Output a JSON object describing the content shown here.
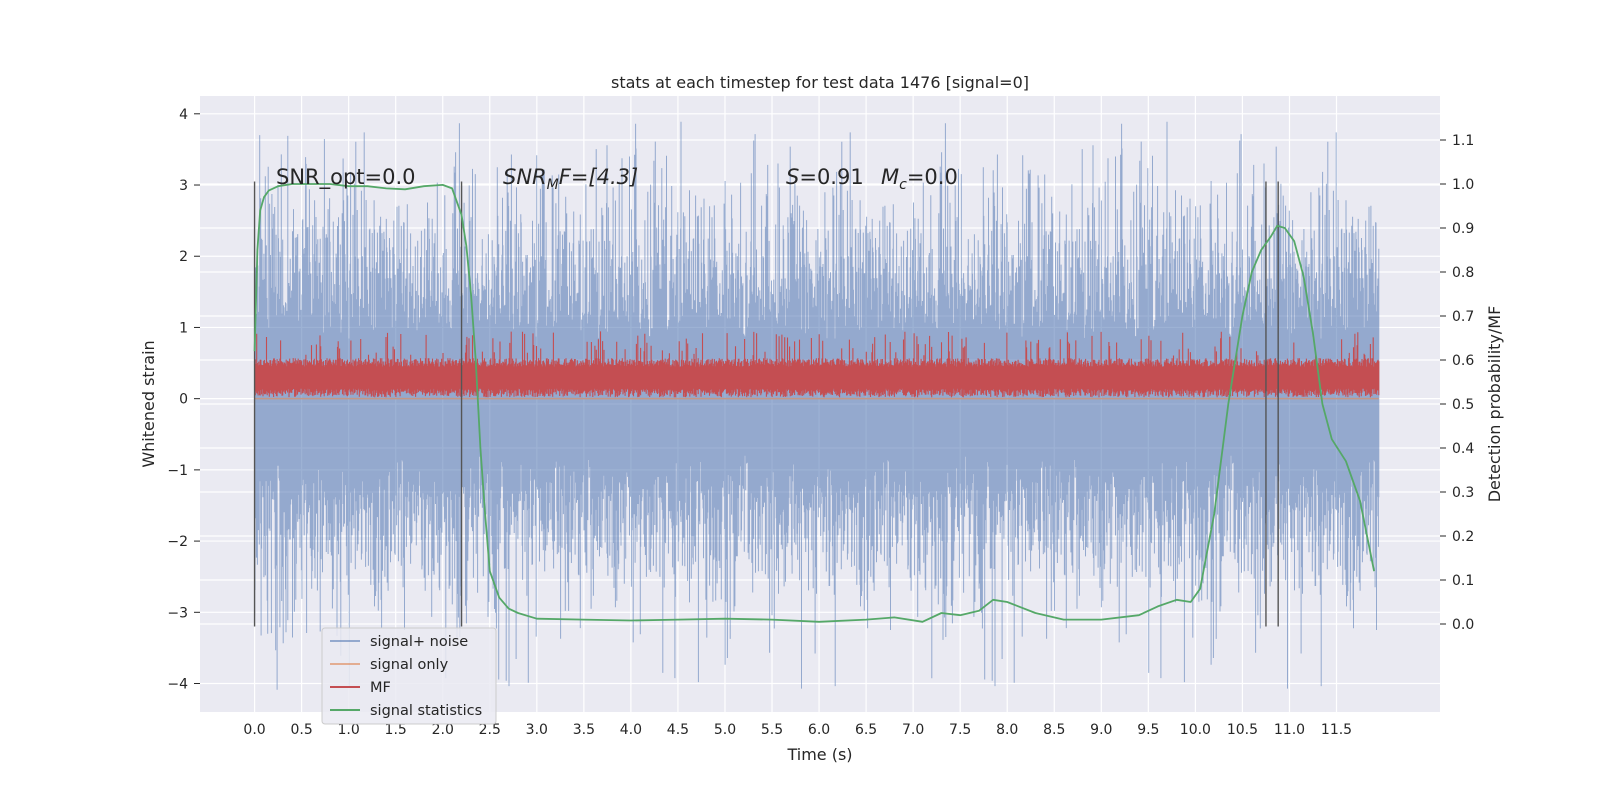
{
  "chart_data": {
    "type": "line",
    "title": "stats at each timestep for test data 1476 [signal=0]",
    "xlabel": "Time (s)",
    "ylabel": "Whitened strain",
    "y2label": "Detection probability/MF",
    "xlim": [
      -0.58,
      12.6
    ],
    "ylim": [
      -4.4,
      4.25
    ],
    "y2lim": [
      -0.2,
      1.2
    ],
    "x_ticks": [
      "0.0",
      "0.5",
      "1.0",
      "1.5",
      "2.0",
      "2.5",
      "3.0",
      "3.5",
      "4.0",
      "4.5",
      "5.0",
      "5.5",
      "6.0",
      "6.5",
      "7.0",
      "7.5",
      "8.0",
      "8.5",
      "9.0",
      "9.5",
      "10.0",
      "10.5",
      "11.0",
      "11.5"
    ],
    "y_ticks": [
      "4",
      "3",
      "2",
      "1",
      "0",
      "−1",
      "−2",
      "−3",
      "−4"
    ],
    "y2_ticks": [
      "0.0",
      "0.1",
      "0.2",
      "0.3",
      "0.4",
      "0.5",
      "0.6",
      "0.7",
      "0.8",
      "0.9",
      "1.0",
      "1.1"
    ],
    "grid": true,
    "legend_position": "lower-left",
    "annotations": {
      "snr_opt": "SNR_opt=0.0",
      "snr_mf_sym": "SNR",
      "snr_mf_sub": "M",
      "snr_mf_rest": "F=[4.3]",
      "s_sym": "S",
      "s_val": "=0.91",
      "mc_sym": "M",
      "mc_sub": "c",
      "mc_val": "=0.0"
    },
    "vertical_markers": [
      0.0,
      2.2,
      10.75,
      10.88
    ],
    "series": [
      {
        "name": "signal+ noise",
        "color": "#4c72b0",
        "style": "dense noise, approx range -3.2 to 3.4",
        "x_range": [
          0.0,
          11.95
        ],
        "amplitude": 1.3,
        "spike_max": 3.9,
        "spike_min": -4.1
      },
      {
        "name": "signal only",
        "color": "#dd8452",
        "x_range": [
          0.0,
          11.95
        ],
        "values": "flat at 0"
      },
      {
        "name": "MF",
        "color": "#c44e52",
        "x_range": [
          0.0,
          11.95
        ],
        "range_whitened_strain": [
          0.0,
          0.95
        ]
      },
      {
        "name": "signal statistics",
        "color": "#55a868",
        "axis": "right",
        "x": [
          0.0,
          0.03,
          0.06,
          0.1,
          0.15,
          0.25,
          0.4,
          0.6,
          0.8,
          1.0,
          1.2,
          1.4,
          1.6,
          1.8,
          2.0,
          2.1,
          2.2,
          2.25,
          2.3,
          2.35,
          2.4,
          2.45,
          2.5,
          2.6,
          2.7,
          2.8,
          3.0,
          3.5,
          4.0,
          4.5,
          5.0,
          5.5,
          6.0,
          6.5,
          6.8,
          7.1,
          7.3,
          7.5,
          7.7,
          7.85,
          8.0,
          8.3,
          8.6,
          9.0,
          9.4,
          9.6,
          9.8,
          9.95,
          10.05,
          10.2,
          10.35,
          10.5,
          10.6,
          10.7,
          10.8,
          10.87,
          10.95,
          11.05,
          11.15,
          11.25,
          11.35,
          11.45,
          11.6,
          11.75,
          11.9
        ],
        "y": [
          0.62,
          0.85,
          0.94,
          0.97,
          0.985,
          0.995,
          1.0,
          1.0,
          1.0,
          0.995,
          0.995,
          0.99,
          0.988,
          0.995,
          0.998,
          0.99,
          0.93,
          0.86,
          0.75,
          0.6,
          0.4,
          0.25,
          0.12,
          0.06,
          0.035,
          0.025,
          0.012,
          0.01,
          0.008,
          0.01,
          0.012,
          0.01,
          0.005,
          0.01,
          0.015,
          0.005,
          0.025,
          0.02,
          0.03,
          0.055,
          0.05,
          0.025,
          0.01,
          0.01,
          0.02,
          0.04,
          0.055,
          0.05,
          0.08,
          0.25,
          0.5,
          0.7,
          0.8,
          0.85,
          0.88,
          0.905,
          0.9,
          0.87,
          0.79,
          0.66,
          0.5,
          0.42,
          0.37,
          0.28,
          0.12
        ]
      }
    ]
  }
}
